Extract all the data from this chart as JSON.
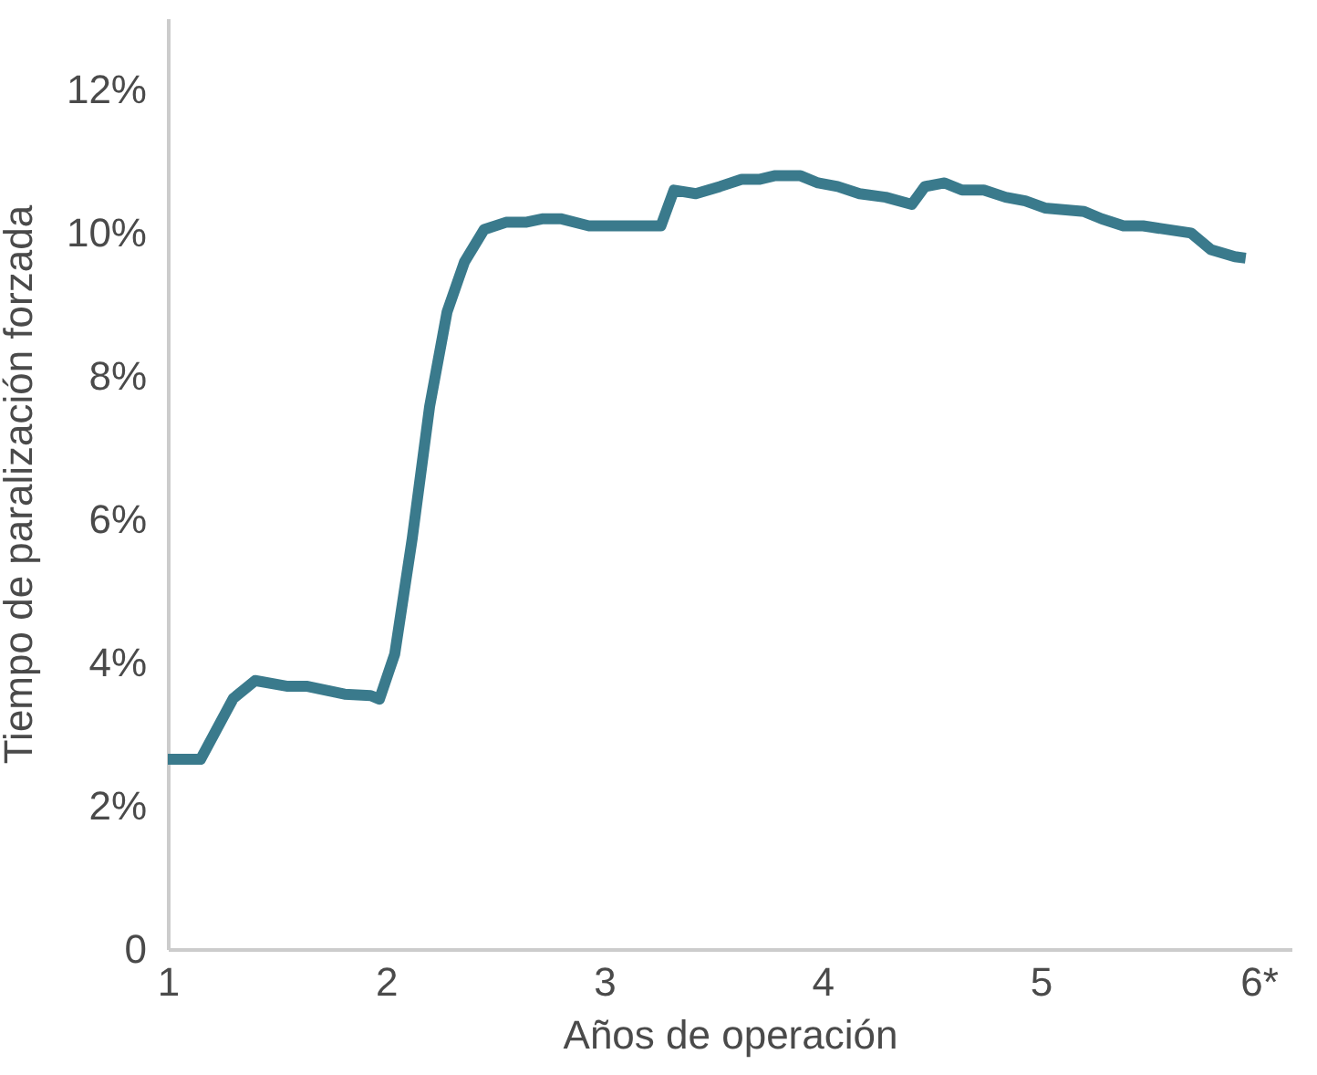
{
  "chart_data": {
    "type": "line",
    "xlabel": "Años de operación",
    "ylabel": "Tiempo de paralización forzada",
    "x": [
      1,
      1.15,
      1.3,
      1.4,
      1.55,
      1.64,
      1.81,
      1.93,
      1.97,
      2.04,
      2.12,
      2.2,
      2.28,
      2.36,
      2.45,
      2.55,
      2.64,
      2.72,
      2.8,
      2.93,
      3.09,
      3.26,
      3.32,
      3.42,
      3.53,
      3.63,
      3.71,
      3.78,
      3.9,
      3.98,
      4.07,
      4.17,
      4.29,
      4.41,
      4.47,
      4.56,
      4.64,
      4.74,
      4.84,
      4.93,
      5.02,
      5.2,
      5.28,
      5.38,
      5.47,
      5.69,
      5.78,
      5.89,
      5.94
    ],
    "series": [
      {
        "color": "#3a7a8c",
        "values": [
          2.65,
          2.65,
          3.5,
          3.75,
          3.67,
          3.67,
          3.56,
          3.54,
          3.49,
          4.12,
          5.73,
          7.58,
          8.9,
          9.6,
          10.05,
          10.15,
          10.15,
          10.2,
          10.2,
          10.1,
          10.1,
          10.1,
          10.6,
          10.55,
          10.65,
          10.75,
          10.75,
          10.8,
          10.8,
          10.7,
          10.65,
          10.55,
          10.5,
          10.4,
          10.65,
          10.7,
          10.6,
          10.6,
          10.5,
          10.45,
          10.35,
          10.3,
          10.2,
          10.1,
          10.1,
          10.0,
          9.77,
          9.67,
          9.65
        ]
      }
    ],
    "xlim": [
      1,
      6.15
    ],
    "xticks": [
      1,
      2,
      3,
      4,
      5,
      {
        "value": 6,
        "label": "6*"
      }
    ],
    "ylim": [
      0,
      13
    ],
    "yticks": [
      0,
      {
        "value": 2,
        "label": "2%"
      },
      {
        "value": 4,
        "label": "4%"
      },
      {
        "value": 6,
        "label": "6%"
      },
      {
        "value": 8,
        "label": "8%"
      },
      {
        "value": 10,
        "label": "10%"
      },
      {
        "value": 12,
        "label": "12%"
      }
    ],
    "grid": false,
    "marker": "none",
    "line_style": "solid"
  }
}
